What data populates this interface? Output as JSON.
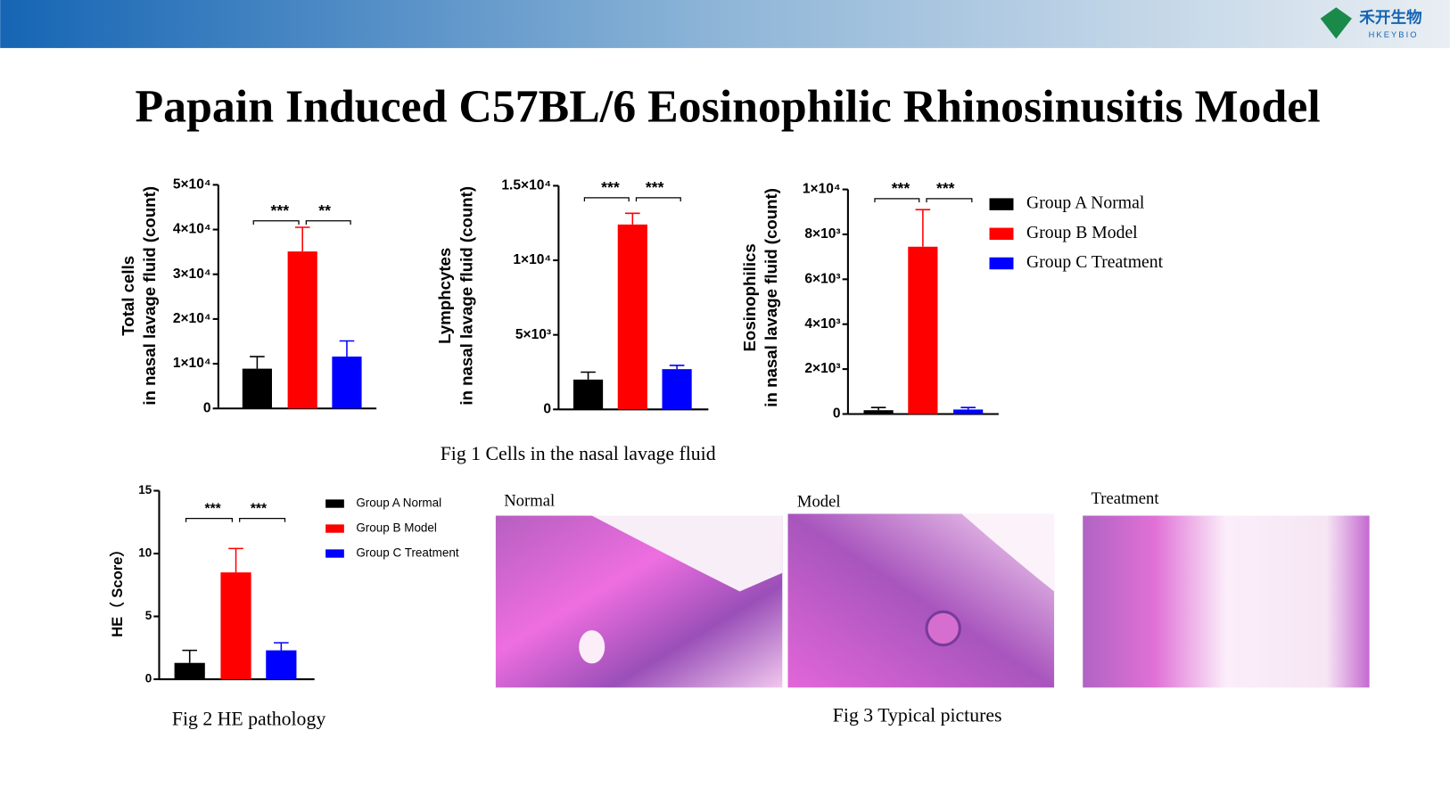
{
  "title": "Papain Induced C57BL/6 Eosinophilic Rhinosinusitis Model",
  "logo": {
    "name": "禾开生物",
    "sub": "HKEYBIO"
  },
  "captions": [
    "Fig 1 Cells in the nasal lavage fluid",
    "Fig 2  HE pathology",
    "Fig 3  Typical pictures"
  ],
  "pictures": [
    "Normal",
    "Model",
    "Treatment"
  ],
  "chart_data": [
    {
      "type": "bar",
      "ylabel": [
        "Total cells",
        "in nasal lavage fluid (count)"
      ],
      "categories": [
        null,
        null,
        null
      ],
      "values": [
        8900,
        35100,
        11600
      ],
      "errors": [
        2700,
        5400,
        3500
      ],
      "colors": [
        "#000000",
        "#ff0000",
        "#0000ff"
      ],
      "ylim": [
        0,
        50000
      ],
      "yticks": [
        0,
        {
          "value": 10000,
          "label": "1×10⁴"
        },
        {
          "value": 20000,
          "label": "2×10⁴"
        },
        {
          "value": 30000,
          "label": "3×10⁴"
        },
        {
          "value": 40000,
          "label": "4×10⁴"
        },
        {
          "value": 50000,
          "label": "5×10⁴"
        }
      ],
      "significance": [
        "***",
        "**"
      ]
    },
    {
      "type": "bar",
      "ylabel": [
        "Lymphcytes",
        "in nasal lavage fluid (count)"
      ],
      "categories": [
        null,
        null,
        null
      ],
      "values": [
        2000,
        12400,
        2700
      ],
      "errors": [
        500,
        750,
        250
      ],
      "colors": [
        "#000000",
        "#ff0000",
        "#0000ff"
      ],
      "ylim": [
        0,
        15000
      ],
      "yticks": [
        0,
        {
          "value": 5000,
          "label": "5×10³"
        },
        {
          "value": 10000,
          "label": "1×10⁴"
        },
        {
          "value": 15000,
          "label": "1.5×10⁴"
        }
      ],
      "significance": [
        "***",
        "***"
      ]
    },
    {
      "type": "bar",
      "ylabel": [
        "Eosinophilics",
        "in nasal lavage fluid (count)"
      ],
      "series": [
        {
          "name": "Group A Normal",
          "color": "#000000",
          "values": [
            170
          ],
          "errors": [
            120
          ]
        },
        {
          "name": "Group B Model",
          "color": "#ff0000",
          "values": [
            7450
          ],
          "errors": [
            1650
          ]
        },
        {
          "name": "Group C  Treatment",
          "color": "#0000ff",
          "values": [
            200
          ],
          "errors": [
            90
          ]
        }
      ],
      "ylim": [
        0,
        10000
      ],
      "yticks": [
        0,
        {
          "value": 2000,
          "label": "2×10³"
        },
        {
          "value": 4000,
          "label": "4×10³"
        },
        {
          "value": 6000,
          "label": "6×10³"
        },
        {
          "value": 8000,
          "label": "8×10³"
        },
        {
          "value": 10000,
          "label": "1×10⁴"
        }
      ],
      "significance": [
        "***",
        "***"
      ]
    },
    {
      "type": "bar",
      "ylabel": [
        "HE（ Score）"
      ],
      "series": [
        {
          "name": "Group A Normal",
          "color": "#000000",
          "values": [
            1.3
          ],
          "errors": [
            1.0
          ]
        },
        {
          "name": "Group B Model",
          "color": "#ff0000",
          "values": [
            8.5
          ],
          "errors": [
            1.9
          ]
        },
        {
          "name": "Group C Treatment",
          "color": "#0000ff",
          "values": [
            2.3
          ],
          "errors": [
            0.6
          ]
        }
      ],
      "ylim": [
        0,
        15
      ],
      "yticks": [
        0,
        5,
        10,
        15
      ],
      "significance": [
        "***",
        "***"
      ]
    }
  ]
}
